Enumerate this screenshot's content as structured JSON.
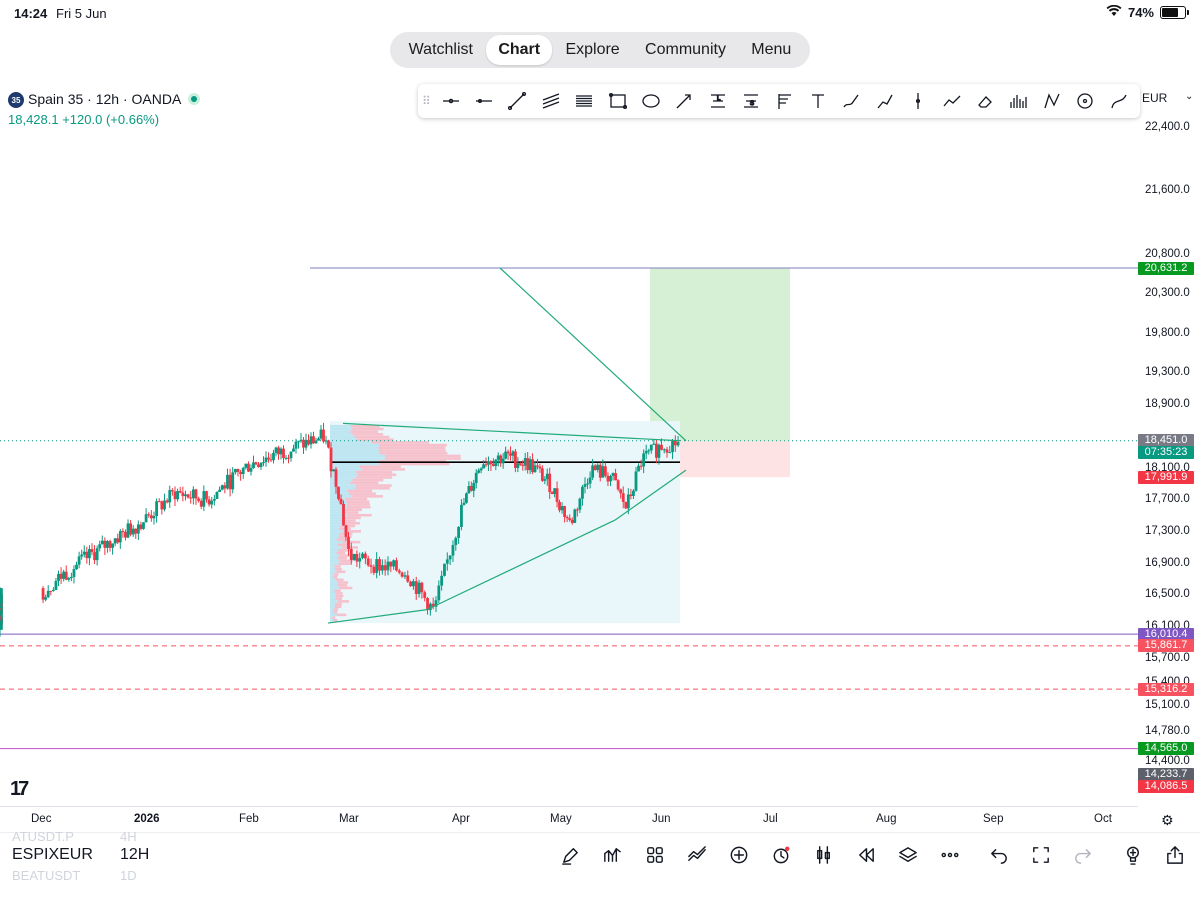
{
  "status_bar": {
    "time": "14:24",
    "date": "Fri 5 Jun",
    "battery": "74%",
    "battery_level": 0.74
  },
  "nav": {
    "items": [
      "Watchlist",
      "Chart",
      "Explore",
      "Community",
      "Menu"
    ],
    "active": "Chart"
  },
  "symbol": {
    "badge": "35",
    "title": "Spain 35 · 12h · OANDA",
    "price_line": "18,428.1  +120.0 (+0.66%)",
    "live_color": "#089981"
  },
  "toolbar": {
    "currency": "EUR",
    "tools": [
      "horizontal-ray-icon",
      "horizontal-line-icon",
      "trend-line-icon",
      "parallel-channel-icon",
      "regression-channel-icon",
      "rectangle-icon",
      "ellipse-icon",
      "arrow-icon",
      "long-position-icon",
      "short-position-icon",
      "fib-retracement-icon",
      "text-icon",
      "brush-icon",
      "path-icon",
      "vertical-line-icon",
      "polyline-icon",
      "eraser-icon",
      "volume-profile-icon",
      "pattern-icon",
      "circle-icon",
      "curve-icon"
    ]
  },
  "chart_data": {
    "type": "candlestick",
    "symbol": "Spain 35 · 12h · OANDA",
    "last_price": 18428.1,
    "change": 120.0,
    "change_pct": 0.66,
    "y_ticks": [
      22400,
      21600,
      20800,
      20300,
      19800,
      19300,
      18900,
      18100,
      17700,
      17300,
      16900,
      16500,
      16100,
      15700,
      15400,
      15100,
      14780,
      14400
    ],
    "x_ticks": [
      "Dec",
      "2026",
      "Feb",
      "Mar",
      "Apr",
      "May",
      "Jun",
      "Jul",
      "Aug",
      "Sep",
      "Oct"
    ],
    "price_tags": [
      {
        "value": "20,631.2",
        "color": "#089920",
        "y": 20631.2
      },
      {
        "value": "18,451.0",
        "color": "#787b86",
        "y": 18451.0
      },
      {
        "value": "07:35:23",
        "color": "#089981",
        "y": 18300
      },
      {
        "value": "17,991.9",
        "color": "#f23645",
        "y": 17991.9
      },
      {
        "value": "16,010.4",
        "color": "#7e57c2",
        "y": 16010.4
      },
      {
        "value": "15,861.7",
        "color": "#f7525f",
        "y": 15861.7
      },
      {
        "value": "15,316.2",
        "color": "#f7525f",
        "y": 15316.2
      },
      {
        "value": "14,565.0",
        "color": "#089920",
        "y": 14565.0
      },
      {
        "value": "14,233.7",
        "color": "#5d606b",
        "y": 14233.7
      },
      {
        "value": "14,086.5",
        "color": "#f23645",
        "y": 14086.5
      }
    ],
    "horizontal_lines": [
      {
        "y": 20631.2,
        "color": "#7e7fbd",
        "style": "solid"
      },
      {
        "y": 18451.0,
        "color": "#089981",
        "style": "dotted"
      },
      {
        "y": 18180,
        "color": "#000000",
        "style": "solid"
      },
      {
        "y": 16010.4,
        "color": "#7e57c2",
        "style": "solid"
      },
      {
        "y": 15861.7,
        "color": "#f7525f",
        "style": "dashed"
      },
      {
        "y": 15316.2,
        "color": "#f7525f",
        "style": "dashed"
      },
      {
        "y": 14565.0,
        "color": "#c050c8",
        "style": "solid"
      }
    ],
    "long_position": {
      "entry": 18451.0,
      "target": 20631.2,
      "stop": 17991.9,
      "from": "Jun",
      "to": "Jul"
    },
    "colors": {
      "up": "#089981",
      "down": "#f23645",
      "drawing": "#22ab78",
      "profit": "#d6f0d6",
      "loss": "#fde3e3",
      "profile": "#e9f7fb"
    }
  },
  "bottom_bar": {
    "symbol": "ESPIXEUR",
    "interval": "12H",
    "ghost_top": [
      "ATUSDT.P",
      "4H"
    ],
    "ghost_bottom": [
      "BEATUSDT",
      "1D"
    ],
    "tools": [
      "pen-icon",
      "indicators-icon",
      "templates-icon",
      "compare-icon",
      "add-icon",
      "alert-icon",
      "bar-style-icon",
      "replay-icon",
      "layers-icon",
      "more-icon",
      "undo-icon",
      "fullscreen-icon",
      "redo-icon",
      "idea-icon",
      "share-icon"
    ]
  }
}
